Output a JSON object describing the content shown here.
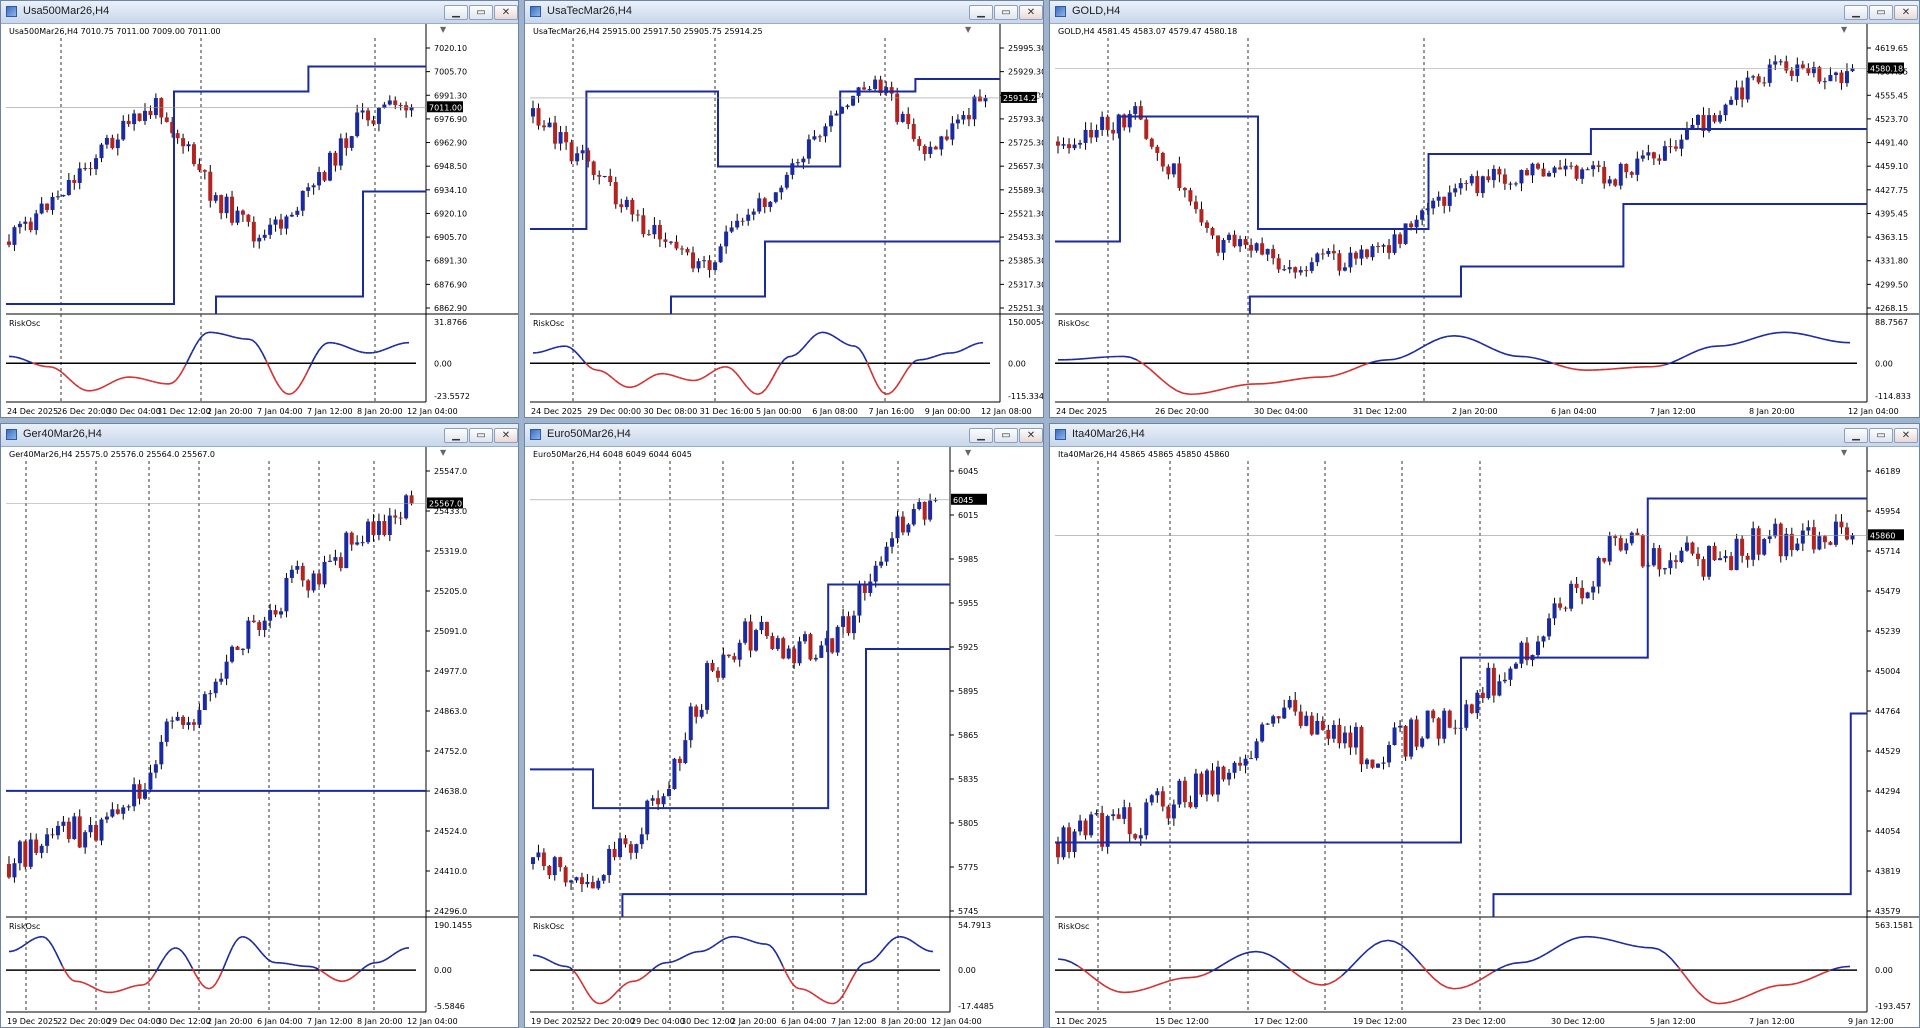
{
  "colors": {
    "bull": "#1a2aa0",
    "bear": "#b3231f",
    "line": "#1a2aa0",
    "osc_up": "#1a2aa0",
    "osc_down": "#d43030",
    "grid": "#000000"
  },
  "windows": [
    {
      "title": "Usa500Mar26,H4",
      "info": "Usa500Mar26,H4  7010.75 7011.00 7009.00 7011.00",
      "price_label": "7011.00",
      "price_ticks": [
        "7020.10",
        "7005.70",
        "6991.30",
        "6976.90",
        "6962.90",
        "6948.50",
        "6934.10",
        "6920.10",
        "6905.70",
        "6891.30",
        "6876.90",
        "6862.90"
      ],
      "osc_label": "RiskOsc",
      "osc_ticks": [
        "31.8766",
        "0.00",
        "-23.5572"
      ],
      "time_ticks": [
        "24 Dec 2025",
        "26 Dec 20:00",
        "30 Dec 04:00",
        "31 Dec 12:00",
        "2 Jan 20:00",
        "7 Jan 04:00",
        "7 Jan 12:00",
        "8 Jan 20:00",
        "12 Jan 04:00"
      ]
    },
    {
      "title": "UsaTecMar26,H4",
      "info": "UsaTecMar26,H4  25915.00 25917.50 25905.75 25914.25",
      "price_label": "25914.25",
      "price_ticks": [
        "25995.30",
        "25929.30",
        "25861.30",
        "25793.30",
        "25725.30",
        "25657.30",
        "25589.30",
        "25521.30",
        "25453.30",
        "25385.30",
        "25317.30",
        "25251.30"
      ],
      "osc_label": "RiskOsc",
      "osc_ticks": [
        "150.0054",
        "0.00",
        "-115.3341"
      ],
      "time_ticks": [
        "24 Dec 2025",
        "29 Dec 00:00",
        "30 Dec 08:00",
        "31 Dec 16:00",
        "5 Jan 00:00",
        "6 Jan 08:00",
        "7 Jan 16:00",
        "9 Jan 00:00",
        "12 Jan 08:00"
      ]
    },
    {
      "title": "GOLD,H4",
      "info": "GOLD,H4  4581.45 4583.07 4579.47 4580.18",
      "price_label": "4580.18",
      "price_ticks": [
        "4619.65",
        "4587.55",
        "4555.45",
        "4523.70",
        "4491.40",
        "4459.10",
        "4427.75",
        "4395.45",
        "4363.15",
        "4331.80",
        "4299.50",
        "4268.15"
      ],
      "osc_label": "RiskOsc",
      "osc_ticks": [
        "88.7567",
        "0.00",
        "-114.833"
      ],
      "time_ticks": [
        "24 Dec 2025",
        "26 Dec 20:00",
        "30 Dec 04:00",
        "31 Dec 12:00",
        "2 Jan 20:00",
        "6 Jan 04:00",
        "7 Jan 12:00",
        "8 Jan 20:00",
        "12 Jan 04:00"
      ]
    },
    {
      "title": "Ger40Mar26,H4",
      "info": "Ger40Mar26,H4  25575.0 25576.0 25564.0 25567.0",
      "price_label": "25567.0",
      "price_ticks": [
        "25547.0",
        "25433.0",
        "25319.0",
        "25205.0",
        "25091.0",
        "24977.0",
        "24863.0",
        "24752.0",
        "24638.0",
        "24524.0",
        "24410.0",
        "24296.0"
      ],
      "osc_label": "RiskOsc",
      "osc_ticks": [
        "190.1455",
        "0.00",
        "-5.5846"
      ],
      "time_ticks": [
        "19 Dec 2025",
        "22 Dec 20:00",
        "29 Dec 04:00",
        "30 Dec 12:00",
        "2 Jan 20:00",
        "6 Jan 04:00",
        "7 Jan 12:00",
        "8 Jan 20:00",
        "12 Jan 04:00"
      ]
    },
    {
      "title": "Euro50Mar26,H4",
      "info": "Euro50Mar26,H4  6048 6049 6044 6045",
      "price_label": "6045",
      "price_ticks": [
        "6045",
        "6015",
        "5985",
        "5955",
        "5925",
        "5895",
        "5865",
        "5835",
        "5805",
        "5775",
        "5745"
      ],
      "osc_label": "RiskOsc",
      "osc_ticks": [
        "54.7913",
        "0.00",
        "-17.4485"
      ],
      "time_ticks": [
        "19 Dec 2025",
        "22 Dec 20:00",
        "29 Dec 04:00",
        "30 Dec 12:00",
        "2 Jan 20:00",
        "6 Jan 04:00",
        "7 Jan 12:00",
        "8 Jan 20:00",
        "12 Jan 04:00"
      ]
    },
    {
      "title": "Ita40Mar26,H4",
      "info": "Ita40Mar26,H4  45865 45865 45850 45860",
      "price_label": "45860",
      "price_ticks": [
        "46189",
        "45954",
        "45714",
        "45479",
        "45239",
        "45004",
        "44764",
        "44529",
        "44294",
        "44054",
        "43819",
        "43579"
      ],
      "osc_label": "RiskOsc",
      "osc_ticks": [
        "563.1581",
        "0.00",
        "-193.457"
      ],
      "time_ticks": [
        "11 Dec 2025",
        "15 Dec 12:00",
        "17 Dec 12:00",
        "19 Dec 12:00",
        "23 Dec 12:00",
        "30 Dec 12:00",
        "5 Jan 12:00",
        "7 Jan 12:00",
        "9 Jan 12:00"
      ]
    }
  ]
}
